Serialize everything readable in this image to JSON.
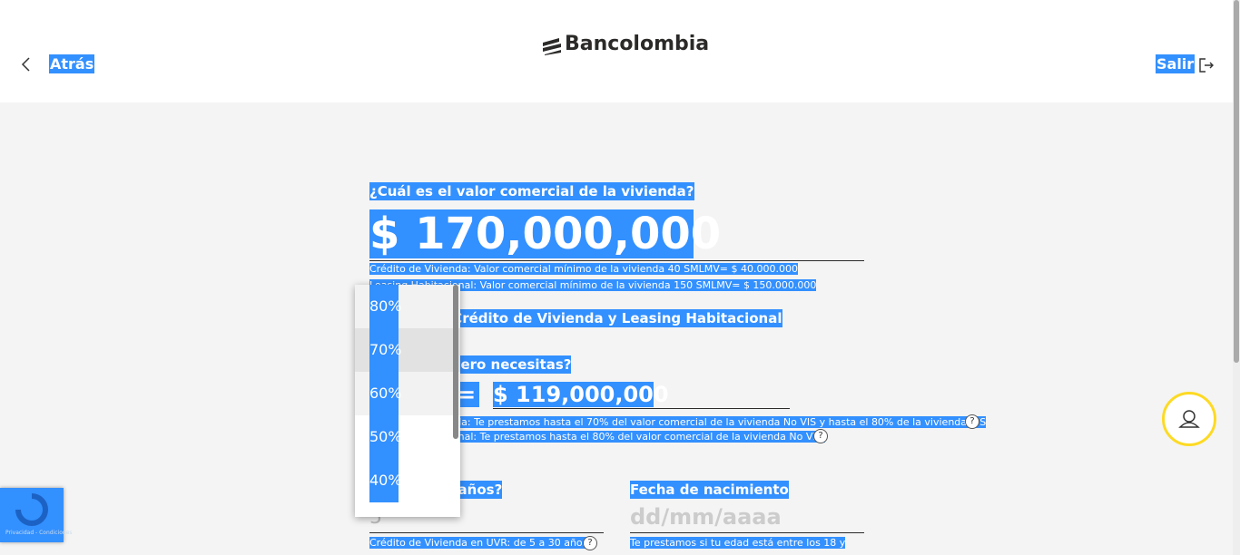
{
  "header": {
    "back": "Atrás",
    "logo": "Bancolombia",
    "exit": "Salir"
  },
  "form": {
    "property_question": "¿Cuál es el valor comercial de la vivienda?",
    "property_value": "$ 170,000,000",
    "property_notes": [
      "Crédito de Vivienda: Valor comercial mínimo de la vivienda 40 SMLMV= $ 40.000.000",
      "Leasing Habitacional: Valor comercial mínimo de la vivienda 150 SMLMV= $ 150.000.000"
    ],
    "simulator_title": "Simulador Crédito de Vivienda y Leasing Habitacional",
    "loan_question": "¿Cuánto dinero necesitas?",
    "equals": "=",
    "loan_value": "$ 119,000,000",
    "loan_notes": [
      "Crédito de Vivienda: Te prestamos hasta el 70% del valor comercial de la vivienda No VIS y hasta el 80% de la vivienda VIS",
      "Leasing Habitacional: Te prestamos hasta el 80% del valor comercial de la vivienda No VIS."
    ],
    "years_label": "¿A cuántos años?",
    "years_value": "5",
    "years_note": "Crédito de Vivienda en UVR: de 5 a 30 años",
    "birth_label": "Fecha de nacimiento",
    "birth_placeholder": "dd/mm/aaaa",
    "birth_note": "Te prestamos si tu edad está entre los 18 y"
  },
  "dropdown": {
    "options": [
      "80%",
      "70%",
      "60%",
      "50%",
      "40%"
    ]
  },
  "recaptcha": {
    "text": "Privacidad - Condiciones"
  }
}
